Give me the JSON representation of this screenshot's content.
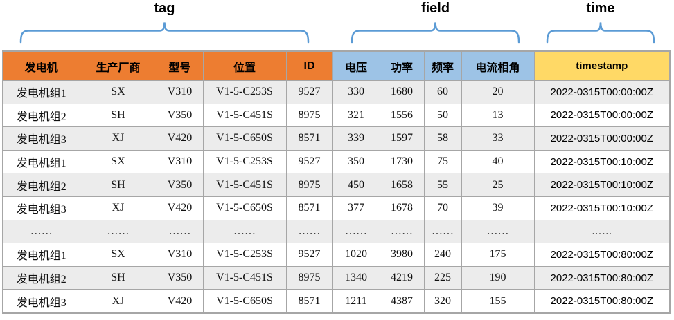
{
  "annotations": {
    "tag": {
      "label": "tag"
    },
    "field": {
      "label": "field"
    },
    "time": {
      "label": "time"
    }
  },
  "table": {
    "header": {
      "tag_columns": [
        "发电机",
        "生产厂商",
        "型号",
        "位置",
        "ID"
      ],
      "field_columns": [
        "电压",
        "功率",
        "频率",
        "电流相角"
      ],
      "time_columns": [
        "timestamp"
      ]
    },
    "rows": [
      [
        "发电机组1",
        "SX",
        "V310",
        "V1-5-C253S",
        "9527",
        "330",
        "1680",
        "60",
        "20",
        "2022-0315T00:00:00Z"
      ],
      [
        "发电机组2",
        "SH",
        "V350",
        "V1-5-C451S",
        "8975",
        "321",
        "1556",
        "50",
        "13",
        "2022-0315T00:00:00Z"
      ],
      [
        "发电机组3",
        "XJ",
        "V420",
        "V1-5-C650S",
        "8571",
        "339",
        "1597",
        "58",
        "33",
        "2022-0315T00:00:00Z"
      ],
      [
        "发电机组1",
        "SX",
        "V310",
        "V1-5-C253S",
        "9527",
        "350",
        "1730",
        "75",
        "40",
        "2022-0315T00:10:00Z"
      ],
      [
        "发电机组2",
        "SH",
        "V350",
        "V1-5-C451S",
        "8975",
        "450",
        "1658",
        "55",
        "25",
        "2022-0315T00:10:00Z"
      ],
      [
        "发电机组3",
        "XJ",
        "V420",
        "V1-5-C650S",
        "8571",
        "377",
        "1678",
        "70",
        "39",
        "2022-0315T00:10:00Z"
      ],
      [
        "……",
        "……",
        "……",
        "……",
        "……",
        "……",
        "……",
        "……",
        "……",
        "……"
      ],
      [
        "发电机组1",
        "SX",
        "V310",
        "V1-5-C253S",
        "9527",
        "1020",
        "3980",
        "240",
        "175",
        "2022-0315T00:80:00Z"
      ],
      [
        "发电机组2",
        "SH",
        "V350",
        "V1-5-C451S",
        "8975",
        "1340",
        "4219",
        "225",
        "190",
        "2022-0315T00:80:00Z"
      ],
      [
        "发电机组3",
        "XJ",
        "V420",
        "V1-5-C650S",
        "8571",
        "1211",
        "4387",
        "320",
        "155",
        "2022-0315T00:80:00Z"
      ]
    ]
  },
  "colors": {
    "tag_header": "#ED7D31",
    "field_header": "#9DC3E6",
    "time_header": "#FFD966",
    "row_stripe": "#ECECEC",
    "grid_border": "#A6A6A6",
    "brace": "#5B9BD5"
  }
}
